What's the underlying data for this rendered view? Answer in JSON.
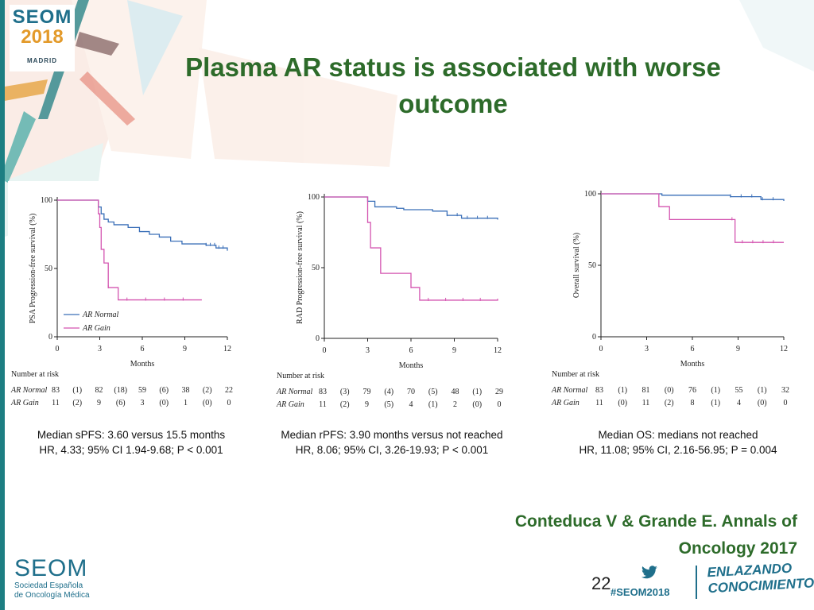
{
  "slide": {
    "title": "Plasma AR status is associated with worse outcome",
    "logo": {
      "main": "SEOM",
      "year": "2018",
      "city": "MADRID"
    },
    "page_number": "22",
    "hashtag": "#SEOM2018",
    "footer_logo": {
      "main": "SEOM",
      "line1": "Sociedad Española",
      "line2": "de Oncología Médica"
    },
    "tagline": {
      "line1": "ENLAZANDO",
      "line2": "CONOCIMIENTO"
    },
    "citation": "Conteduca V & Grande E. Annals of Oncology 2017",
    "colors": {
      "title": "#2d6b2a",
      "ar_normal": "#3a6fb8",
      "ar_gain": "#d455b0",
      "brand": "#1f6f8b"
    },
    "icons": [
      "twitter-bird-icon"
    ]
  },
  "chart_data": [
    {
      "type": "line",
      "ylabel": "PSA Progression-free survival (%)",
      "xlabel": "Months",
      "x_ticks": [
        "0",
        "3",
        "6",
        "9",
        "12"
      ],
      "y_ticks": [
        "0",
        "50",
        "100"
      ],
      "xlim": [
        0,
        12
      ],
      "ylim": [
        0,
        100
      ],
      "legend": [
        "AR Normal",
        "AR Gain"
      ],
      "series": [
        {
          "name": "AR Normal",
          "points": [
            [
              0,
              100
            ],
            [
              2.7,
              100
            ],
            [
              2.9,
              95
            ],
            [
              3.1,
              90
            ],
            [
              3.3,
              86
            ],
            [
              3.6,
              84
            ],
            [
              4.0,
              82
            ],
            [
              5.0,
              80
            ],
            [
              5.8,
              77
            ],
            [
              6.5,
              75
            ],
            [
              7.2,
              73
            ],
            [
              8.0,
              70
            ],
            [
              8.8,
              68
            ],
            [
              10.5,
              67
            ],
            [
              11.2,
              65
            ],
            [
              12,
              63
            ]
          ]
        },
        {
          "name": "AR Gain",
          "points": [
            [
              0,
              100
            ],
            [
              2.7,
              100
            ],
            [
              2.9,
              90
            ],
            [
              3.0,
              80
            ],
            [
              3.1,
              64
            ],
            [
              3.3,
              54
            ],
            [
              3.6,
              36
            ],
            [
              4.3,
              27
            ],
            [
              10.2,
              27
            ]
          ]
        }
      ],
      "risk_table": {
        "header": "Number at risk",
        "rows": [
          {
            "label": "AR Normal",
            "values": [
              "83",
              "(1)",
              "82",
              "(18)",
              "59",
              "(6)",
              "38",
              "(2)",
              "22"
            ]
          },
          {
            "label": "AR Gain",
            "values": [
              "11",
              "(2)",
              "9",
              "(6)",
              "3",
              "(0)",
              "1",
              "(0)",
              "0"
            ]
          }
        ]
      },
      "caption": [
        "Median sPFS: 3.60 versus 15.5 months",
        "HR, 4.33; 95% CI 1.94-9.68; P < 0.001"
      ]
    },
    {
      "type": "line",
      "ylabel": "RAD Progression-free survival (%)",
      "xlabel": "Months",
      "x_ticks": [
        "0",
        "3",
        "6",
        "9",
        "12"
      ],
      "y_ticks": [
        "0",
        "50",
        "100"
      ],
      "xlim": [
        0,
        12
      ],
      "ylim": [
        0,
        100
      ],
      "series": [
        {
          "name": "AR Normal",
          "points": [
            [
              0,
              100
            ],
            [
              2.8,
              100
            ],
            [
              3.0,
              97
            ],
            [
              3.5,
              93
            ],
            [
              5.0,
              92
            ],
            [
              5.5,
              91
            ],
            [
              7.5,
              90
            ],
            [
              8.5,
              87
            ],
            [
              9.5,
              85
            ],
            [
              12,
              84
            ]
          ]
        },
        {
          "name": "AR Gain",
          "points": [
            [
              0,
              100
            ],
            [
              2.8,
              100
            ],
            [
              3.0,
              82
            ],
            [
              3.2,
              64
            ],
            [
              3.9,
              46
            ],
            [
              6.0,
              36
            ],
            [
              6.6,
              27
            ],
            [
              12,
              28
            ]
          ]
        }
      ],
      "risk_table": {
        "header": "Number at risk",
        "rows": [
          {
            "label": "AR Normal",
            "values": [
              "83",
              "(3)",
              "79",
              "(4)",
              "70",
              "(5)",
              "48",
              "(1)",
              "29"
            ]
          },
          {
            "label": "AR Gain",
            "values": [
              "11",
              "(2)",
              "9",
              "(5)",
              "4",
              "(1)",
              "2",
              "(0)",
              "0"
            ]
          }
        ]
      },
      "caption": [
        "Median rPFS: 3.90 months versus not reached",
        "HR, 8.06; 95% CI, 3.26-19.93; P < 0.001"
      ]
    },
    {
      "type": "line",
      "ylabel": "Overall survival (%)",
      "xlabel": "Months",
      "x_ticks": [
        "0",
        "3",
        "6",
        "9",
        "12"
      ],
      "y_ticks": [
        "0",
        "50",
        "100"
      ],
      "xlim": [
        0,
        12
      ],
      "ylim": [
        0,
        100
      ],
      "series": [
        {
          "name": "AR Normal",
          "points": [
            [
              0,
              100
            ],
            [
              3.0,
              100
            ],
            [
              4.0,
              99
            ],
            [
              8.5,
              98
            ],
            [
              10.5,
              96
            ],
            [
              12,
              95
            ]
          ]
        },
        {
          "name": "AR Gain",
          "points": [
            [
              0,
              100
            ],
            [
              3.6,
              100
            ],
            [
              3.8,
              91
            ],
            [
              4.5,
              82
            ],
            [
              8.6,
              82
            ],
            [
              8.8,
              66
            ],
            [
              12,
              66
            ]
          ]
        }
      ],
      "risk_table": {
        "header": "Number at risk",
        "rows": [
          {
            "label": "AR Normal",
            "values": [
              "83",
              "(1)",
              "81",
              "(0)",
              "76",
              "(1)",
              "55",
              "(1)",
              "32"
            ]
          },
          {
            "label": "AR Gain",
            "values": [
              "11",
              "(0)",
              "11",
              "(2)",
              "8",
              "(1)",
              "4",
              "(0)",
              "0"
            ]
          }
        ]
      },
      "caption": [
        "Median OS: medians not reached",
        "HR, 11.08; 95% CI, 2.16-56.95; P = 0.004"
      ]
    }
  ]
}
